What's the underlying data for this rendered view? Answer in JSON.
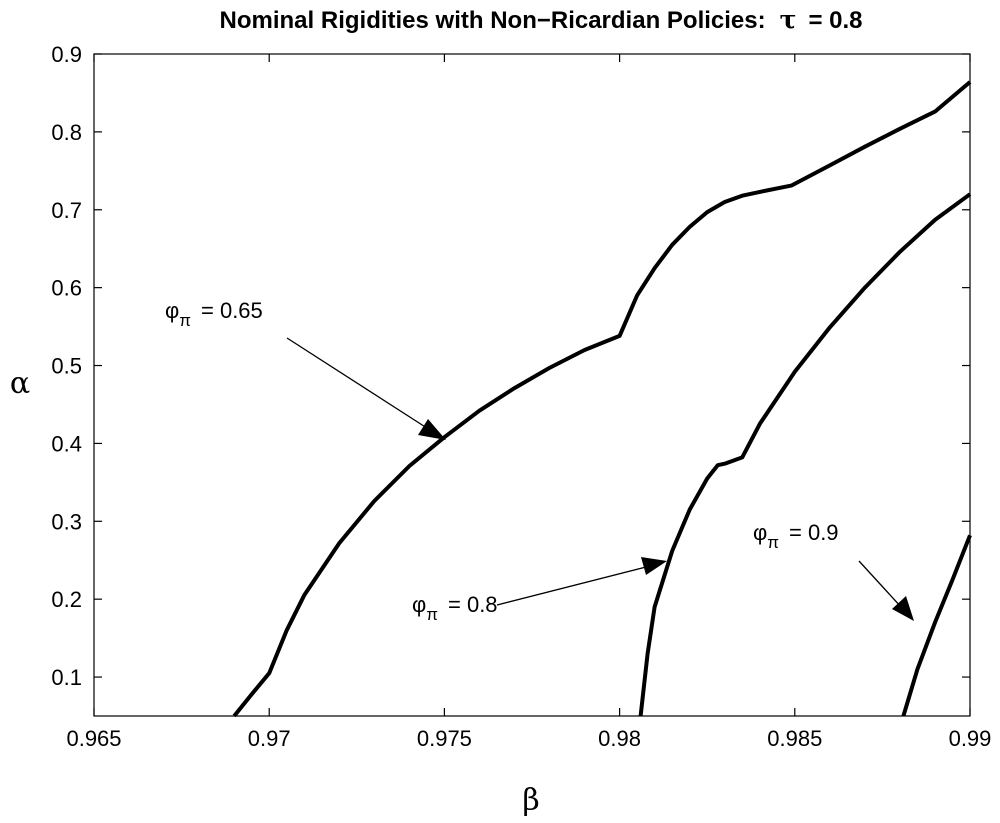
{
  "chart_data": {
    "type": "line",
    "title": {
      "prefix": "Nominal Rigidities with Non−Ricardian Policies:",
      "symbol": "τ",
      "suffix": "= 0.8"
    },
    "xlabel": "β",
    "ylabel": "α",
    "xlim": [
      0.965,
      0.99
    ],
    "ylim": [
      0.05,
      0.9
    ],
    "xticks": [
      0.965,
      0.97,
      0.975,
      0.98,
      0.985,
      0.99
    ],
    "xtick_labels": [
      "0.965",
      "0.97",
      "0.975",
      "0.98",
      "0.985",
      "0.99"
    ],
    "yticks": [
      0.1,
      0.2,
      0.3,
      0.4,
      0.5,
      0.6,
      0.7,
      0.8,
      0.9
    ],
    "ytick_labels": [
      "0.1",
      "0.2",
      "0.3",
      "0.4",
      "0.5",
      "0.6",
      "0.7",
      "0.8",
      "0.9"
    ],
    "grid": false,
    "series": [
      {
        "x": [
          0.969,
          0.9695,
          0.97,
          0.9705,
          0.971,
          0.972,
          0.973,
          0.974,
          0.975,
          0.976,
          0.977,
          0.978,
          0.979,
          0.98,
          0.9805,
          0.981,
          0.9815,
          0.982,
          0.9825,
          0.983,
          0.9835,
          0.984,
          0.9849,
          0.986,
          0.987,
          0.988,
          0.989,
          0.99
        ],
        "y": [
          0.05,
          0.078,
          0.105,
          0.16,
          0.205,
          0.272,
          0.326,
          0.371,
          0.408,
          0.442,
          0.471,
          0.497,
          0.52,
          0.538,
          0.59,
          0.625,
          0.655,
          0.678,
          0.697,
          0.71,
          0.718,
          0.723,
          0.731,
          0.757,
          0.781,
          0.804,
          0.826,
          0.864
        ]
      },
      {
        "x": [
          0.9806,
          0.9808,
          0.981,
          0.9815,
          0.982,
          0.9825,
          0.9828,
          0.983,
          0.9835,
          0.984,
          0.985,
          0.986,
          0.987,
          0.988,
          0.989,
          0.99
        ],
        "y": [
          0.05,
          0.13,
          0.19,
          0.262,
          0.315,
          0.355,
          0.372,
          0.374,
          0.382,
          0.425,
          0.492,
          0.549,
          0.6,
          0.646,
          0.687,
          0.72
        ]
      },
      {
        "x": [
          0.9881,
          0.9885,
          0.989,
          0.9895,
          0.99
        ],
        "y": [
          0.05,
          0.11,
          0.17,
          0.225,
          0.282
        ]
      }
    ],
    "annotations": [
      {
        "base": "φ",
        "sub": "π",
        "text": "= 0.65"
      },
      {
        "base": "φ",
        "sub": "π",
        "text": "= 0.8"
      },
      {
        "base": "φ",
        "sub": "π",
        "text": "= 0.9"
      }
    ]
  }
}
